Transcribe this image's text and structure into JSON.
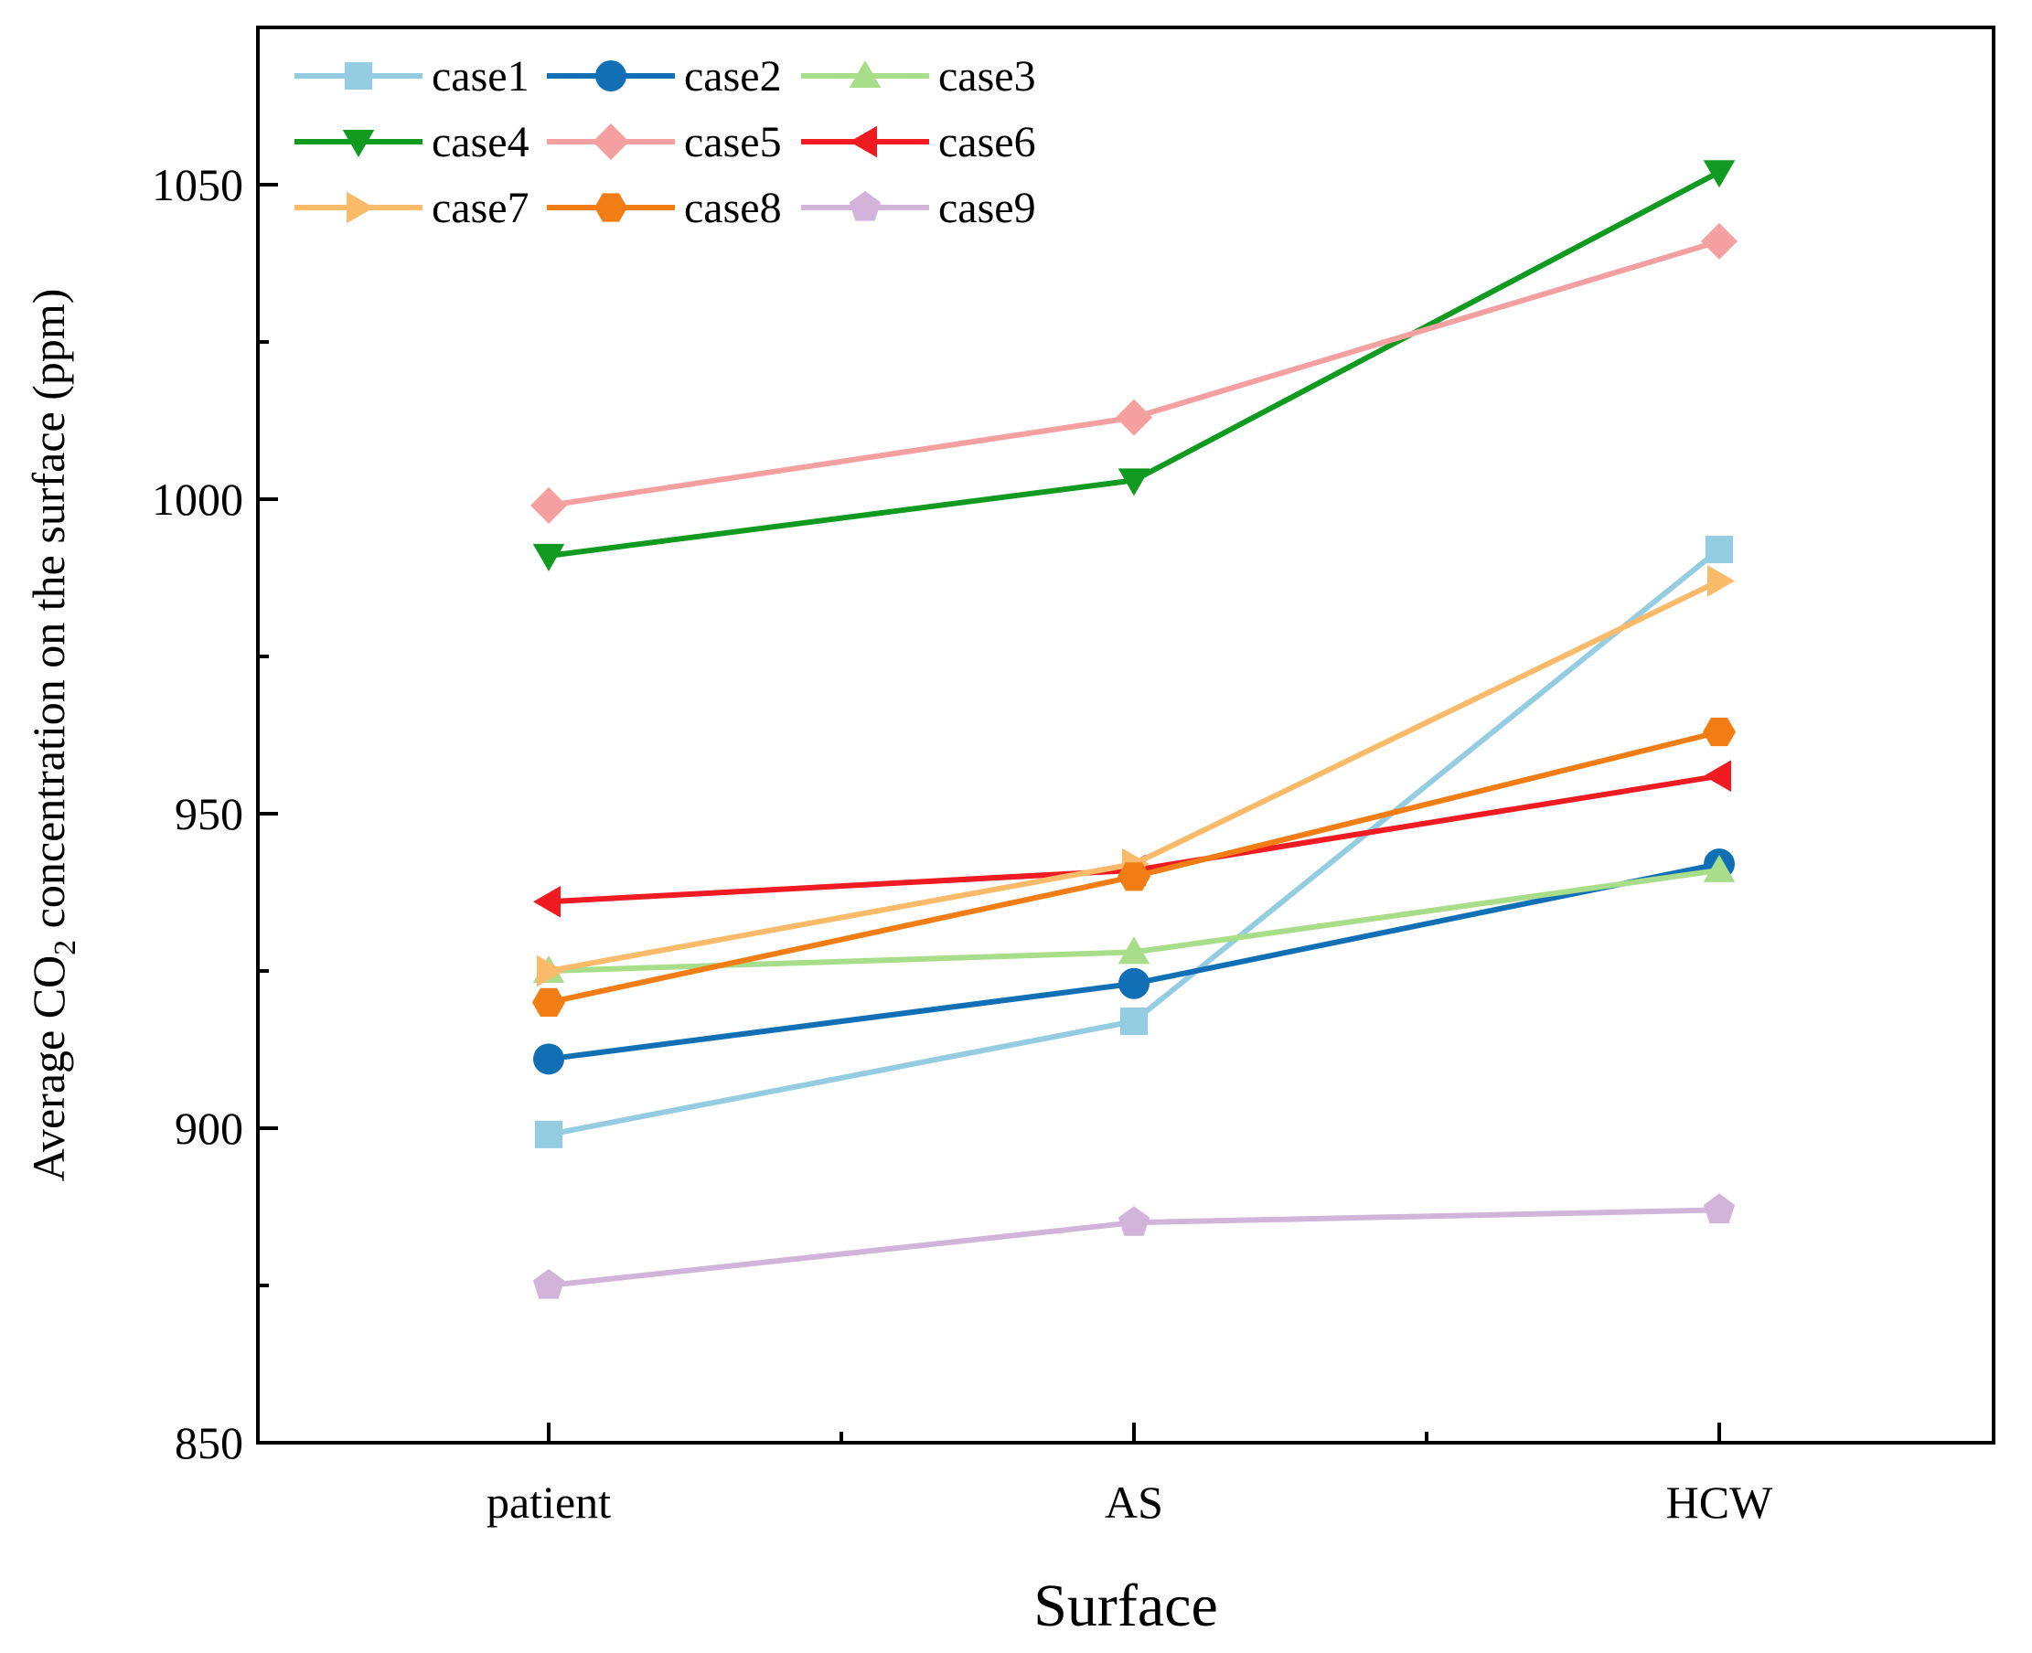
{
  "chart_data": {
    "type": "line",
    "title": "",
    "xlabel": "Surface",
    "ylabel_parts": [
      "Average CO",
      "2",
      " concentration on the surface (ppm)"
    ],
    "categories": [
      "patient",
      "AS",
      "HCW"
    ],
    "ylim": [
      850,
      1075
    ],
    "yticks": [
      850,
      900,
      950,
      1000,
      1050
    ],
    "grid": false,
    "legend_position": "top-left",
    "series": [
      {
        "name": "case1",
        "color": "#94cde2",
        "marker": "square",
        "values": [
          899,
          917,
          992
        ]
      },
      {
        "name": "case2",
        "color": "#1170b5",
        "marker": "circle",
        "values": [
          911,
          923,
          942
        ]
      },
      {
        "name": "case3",
        "color": "#a8dd8a",
        "marker": "triangle-up",
        "values": [
          925,
          928,
          941
        ]
      },
      {
        "name": "case4",
        "color": "#119a20",
        "marker": "triangle-down",
        "values": [
          991,
          1003,
          1052
        ]
      },
      {
        "name": "case5",
        "color": "#f5a0a0",
        "marker": "diamond",
        "values": [
          999,
          1013,
          1041
        ]
      },
      {
        "name": "case6",
        "color": "#ef1a22",
        "marker": "triangle-left",
        "values": [
          936,
          941,
          956
        ]
      },
      {
        "name": "case7",
        "color": "#f9bb6a",
        "marker": "triangle-right",
        "values": [
          925,
          942,
          987
        ]
      },
      {
        "name": "case8",
        "color": "#f27d15",
        "marker": "hexagon",
        "values": [
          920,
          940,
          963
        ]
      },
      {
        "name": "case9",
        "color": "#d2b4da",
        "marker": "pentagon",
        "values": [
          875,
          885,
          887
        ]
      }
    ]
  }
}
